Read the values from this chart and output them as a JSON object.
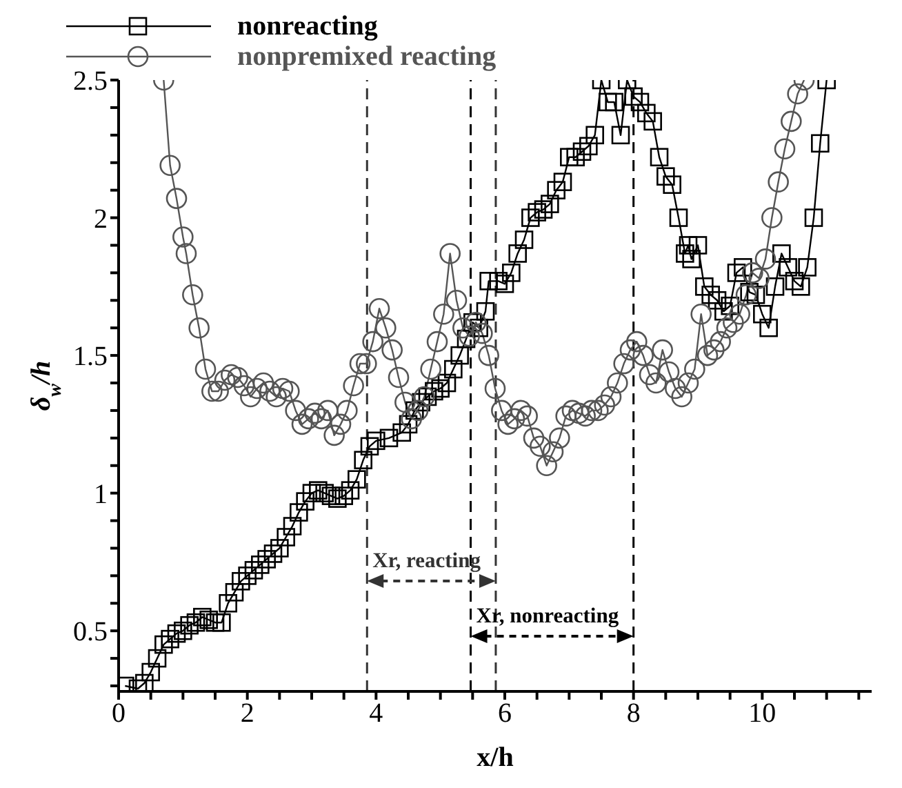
{
  "chart_data": {
    "type": "line",
    "xlabel": "x/h",
    "ylabel": "δ$_{w}$/h",
    "xlim": [
      0,
      11.7
    ],
    "ylim": [
      0.28,
      2.5
    ],
    "xticks": [
      0,
      {
        "value": 0.5,
        "label": null
      },
      {
        "value": 1,
        "label": null
      },
      {
        "value": 1.5,
        "label": null
      },
      2,
      {
        "value": 2.5,
        "label": null
      },
      {
        "value": 3,
        "label": null
      },
      {
        "value": 3.5,
        "label": null
      },
      4,
      {
        "value": 4.5,
        "label": null
      },
      {
        "value": 5,
        "label": null
      },
      {
        "value": 5.5,
        "label": null
      },
      6,
      {
        "value": 6.5,
        "label": null
      },
      {
        "value": 7,
        "label": null
      },
      {
        "value": 7.5,
        "label": null
      },
      8,
      {
        "value": 8.5,
        "label": null
      },
      {
        "value": 9,
        "label": null
      },
      {
        "value": 9.5,
        "label": null
      },
      10,
      {
        "value": 10.5,
        "label": null
      },
      {
        "value": 11,
        "label": null
      },
      {
        "value": 11.5,
        "label": null
      }
    ],
    "yticks": [
      {
        "value": 0.3,
        "label": null
      },
      {
        "value": 0.4,
        "label": null
      },
      0.5,
      {
        "value": 0.6,
        "label": null
      },
      {
        "value": 0.7,
        "label": null
      },
      {
        "value": 0.8,
        "label": null
      },
      {
        "value": 0.9,
        "label": null
      },
      1,
      {
        "value": 1.1,
        "label": null
      },
      {
        "value": 1.2,
        "label": null
      },
      {
        "value": 1.3,
        "label": null
      },
      {
        "value": 1.4,
        "label": null
      },
      1.5,
      {
        "value": 1.6,
        "label": null
      },
      {
        "value": 1.7,
        "label": null
      },
      {
        "value": 1.8,
        "label": null
      },
      {
        "value": 1.9,
        "label": null
      },
      2,
      {
        "value": 2.1,
        "label": null
      },
      {
        "value": 2.2,
        "label": null
      },
      {
        "value": 2.3,
        "label": null
      },
      {
        "value": 2.4,
        "label": null
      },
      2.5
    ],
    "grid": false,
    "legend": "top left",
    "line_style": "solid",
    "series": [
      {
        "name": "nonreacting",
        "color": "#000000",
        "marker": "square",
        "x": [
          0.1,
          0.3,
          0.4,
          0.5,
          0.6,
          0.7,
          0.8,
          0.9,
          1.0,
          1.1,
          1.2,
          1.3,
          1.4,
          1.5,
          1.6,
          1.7,
          1.8,
          1.9,
          2.0,
          2.1,
          2.2,
          2.3,
          2.4,
          2.5,
          2.6,
          2.7,
          2.8,
          2.9,
          3.0,
          3.1,
          3.2,
          3.3,
          3.4,
          3.5,
          3.6,
          3.7,
          3.8,
          3.9,
          4.0,
          4.2,
          4.4,
          4.5,
          4.6,
          4.7,
          4.8,
          4.9,
          5.0,
          5.1,
          5.2,
          5.3,
          5.4,
          5.5,
          5.6,
          5.7,
          5.75,
          5.9,
          6.0,
          6.1,
          6.2,
          6.3,
          6.4,
          6.5,
          6.6,
          6.7,
          6.8,
          6.9,
          7.0,
          7.1,
          7.2,
          7.3,
          7.4,
          7.5,
          7.6,
          7.7,
          7.8,
          7.9,
          8.0,
          8.1,
          8.2,
          8.3,
          8.4,
          8.5,
          8.6,
          8.7,
          8.8,
          8.85,
          8.9,
          9.0,
          9.1,
          9.2,
          9.3,
          9.4,
          9.5,
          9.6,
          9.7,
          9.8,
          9.9,
          10.0,
          10.1,
          10.2,
          10.3,
          10.4,
          10.5,
          10.6,
          10.7,
          10.8,
          10.9,
          11.0
        ],
        "values": [
          0.3,
          0.29,
          0.31,
          0.35,
          0.4,
          0.45,
          0.47,
          0.49,
          0.5,
          0.52,
          0.53,
          0.55,
          0.54,
          0.53,
          0.53,
          0.6,
          0.64,
          0.68,
          0.7,
          0.72,
          0.74,
          0.76,
          0.78,
          0.8,
          0.84,
          0.88,
          0.93,
          0.97,
          1.0,
          1.01,
          1.0,
          0.99,
          0.98,
          0.99,
          1.01,
          1.05,
          1.12,
          1.17,
          1.19,
          1.2,
          1.22,
          1.25,
          1.3,
          1.33,
          1.35,
          1.37,
          1.38,
          1.4,
          1.45,
          1.5,
          1.56,
          1.62,
          1.6,
          1.66,
          1.77,
          1.77,
          1.76,
          1.8,
          1.87,
          1.92,
          2.0,
          2.02,
          2.03,
          2.05,
          2.1,
          2.13,
          2.22,
          2.22,
          2.24,
          2.26,
          2.3,
          2.5,
          2.42,
          2.42,
          2.3,
          2.5,
          2.44,
          2.42,
          2.38,
          2.35,
          2.22,
          2.15,
          2.12,
          2.0,
          1.87,
          1.9,
          1.85,
          1.9,
          1.75,
          1.72,
          1.7,
          1.66,
          1.68,
          1.8,
          1.82,
          1.73,
          1.72,
          1.65,
          1.6,
          1.75,
          1.87,
          1.82,
          1.77,
          1.75,
          1.82,
          2.0,
          2.27,
          2.5
        ]
      },
      {
        "name": "nonpremixed reacting",
        "color": "#555555",
        "marker": "circle",
        "x": [
          0.7,
          0.8,
          0.9,
          1.0,
          1.05,
          1.15,
          1.25,
          1.35,
          1.45,
          1.55,
          1.65,
          1.75,
          1.85,
          1.95,
          2.05,
          2.15,
          2.25,
          2.35,
          2.45,
          2.55,
          2.65,
          2.75,
          2.85,
          2.95,
          3.05,
          3.15,
          3.25,
          3.35,
          3.45,
          3.55,
          3.65,
          3.75,
          3.85,
          3.95,
          4.05,
          4.15,
          4.25,
          4.35,
          4.45,
          4.55,
          4.65,
          4.75,
          4.85,
          4.95,
          5.05,
          5.15,
          5.25,
          5.35,
          5.45,
          5.55,
          5.65,
          5.75,
          5.85,
          5.95,
          6.05,
          6.15,
          6.25,
          6.35,
          6.45,
          6.55,
          6.65,
          6.75,
          6.85,
          6.95,
          7.05,
          7.15,
          7.25,
          7.35,
          7.45,
          7.55,
          7.65,
          7.75,
          7.85,
          7.95,
          8.05,
          8.15,
          8.25,
          8.35,
          8.45,
          8.55,
          8.65,
          8.75,
          8.85,
          8.95,
          9.05,
          9.15,
          9.25,
          9.35,
          9.45,
          9.55,
          9.65,
          9.75,
          9.85,
          9.95,
          10.05,
          10.15,
          10.25,
          10.35,
          10.45,
          10.55,
          10.65
        ],
        "values": [
          2.5,
          2.19,
          2.07,
          1.93,
          1.87,
          1.72,
          1.6,
          1.45,
          1.37,
          1.37,
          1.41,
          1.43,
          1.42,
          1.39,
          1.35,
          1.38,
          1.4,
          1.37,
          1.35,
          1.38,
          1.37,
          1.3,
          1.25,
          1.27,
          1.29,
          1.27,
          1.3,
          1.21,
          1.25,
          1.3,
          1.39,
          1.47,
          1.47,
          1.55,
          1.67,
          1.6,
          1.52,
          1.42,
          1.33,
          1.27,
          1.3,
          1.35,
          1.45,
          1.55,
          1.65,
          1.87,
          1.7,
          1.6,
          1.57,
          1.62,
          1.58,
          1.5,
          1.38,
          1.3,
          1.25,
          1.27,
          1.3,
          1.28,
          1.2,
          1.17,
          1.1,
          1.15,
          1.2,
          1.28,
          1.3,
          1.29,
          1.28,
          1.3,
          1.3,
          1.32,
          1.35,
          1.4,
          1.47,
          1.52,
          1.55,
          1.5,
          1.43,
          1.4,
          1.52,
          1.44,
          1.38,
          1.35,
          1.4,
          1.45,
          1.65,
          1.5,
          1.52,
          1.55,
          1.6,
          1.62,
          1.65,
          1.72,
          1.8,
          1.78,
          1.85,
          2.0,
          2.13,
          2.25,
          2.35,
          2.45,
          2.5
        ]
      }
    ],
    "ref_lines": [
      {
        "axis": "x",
        "value": 3.86,
        "line_style": "dashed",
        "color": "#333333"
      },
      {
        "axis": "x",
        "value": 5.47,
        "line_style": "dashed",
        "color": "#000000"
      },
      {
        "axis": "x",
        "value": 5.86,
        "line_style": "dashed",
        "color": "#333333"
      },
      {
        "axis": "x",
        "value": 8,
        "line_style": "dashed",
        "color": "#000000"
      }
    ],
    "annotations": [
      "Xr, reacting",
      "Xr, nonreacting"
    ]
  }
}
